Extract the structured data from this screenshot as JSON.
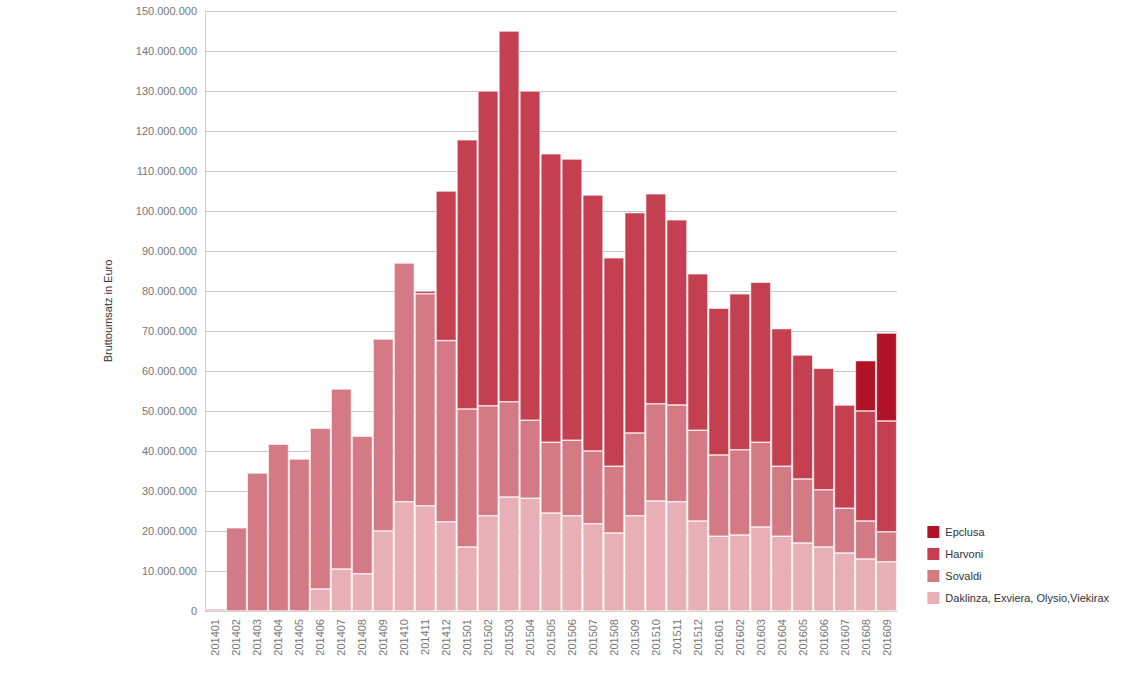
{
  "chart_data": {
    "type": "bar",
    "stacked": true,
    "grid": true,
    "legend": "bottom-right",
    "y_label": "Bruttoumsatz in Euro",
    "categories": [
      "201401",
      "201402",
      "201403",
      "201404",
      "201405",
      "201406",
      "201407",
      "201408",
      "201409",
      "201410",
      "201411",
      "201412",
      "201501",
      "201502",
      "201503",
      "201504",
      "201505",
      "201506",
      "201507",
      "201508",
      "201509",
      "201510",
      "201511",
      "201512",
      "201601",
      "201602",
      "201603",
      "201604",
      "201605",
      "201606",
      "201607",
      "201608",
      "201609"
    ],
    "ylim": [
      0,
      150000000
    ],
    "yticks": [
      0,
      {
        "value": 10000000,
        "label": "10.000.000"
      },
      {
        "value": 20000000,
        "label": "20.000.000"
      },
      {
        "value": 30000000,
        "label": "30.000.000"
      },
      {
        "value": 40000000,
        "label": "40.000.000"
      },
      {
        "value": 50000000,
        "label": "50.000.000"
      },
      {
        "value": 60000000,
        "label": "60.000.000"
      },
      {
        "value": 70000000,
        "label": "70.000.000"
      },
      {
        "value": 80000000,
        "label": "80.000.000"
      },
      {
        "value": 90000000,
        "label": "90.000.000"
      },
      {
        "value": 100000000,
        "label": "100.000.000"
      },
      {
        "value": 110000000,
        "label": "110.000.000"
      },
      {
        "value": 120000000,
        "label": "120.000.000"
      },
      {
        "value": 130000000,
        "label": "130.000.000"
      },
      {
        "value": 140000000,
        "label": "140.000.000"
      },
      {
        "value": 150000000,
        "label": "150.000.000"
      }
    ],
    "series": [
      {
        "name": "Epclusa",
        "color": "#b01226",
        "values": [
          null,
          null,
          null,
          null,
          null,
          null,
          null,
          null,
          null,
          null,
          null,
          null,
          null,
          null,
          null,
          null,
          null,
          null,
          null,
          null,
          null,
          null,
          null,
          null,
          null,
          null,
          null,
          null,
          null,
          null,
          200000,
          12600000,
          22000000
        ]
      },
      {
        "name": "Harvoni",
        "color": "#c44050",
        "values": [
          null,
          null,
          null,
          null,
          null,
          null,
          null,
          null,
          null,
          null,
          700000,
          37400000,
          67300000,
          78700000,
          92700000,
          82300000,
          72100000,
          70300000,
          64000000,
          52100000,
          55100000,
          52500000,
          46300000,
          39100000,
          36700000,
          39000000,
          40000000,
          34400000,
          31000000,
          30400000,
          25800000,
          27500000,
          27700000
        ]
      },
      {
        "name": "Sovaldi",
        "color": "#d47a85",
        "values": [
          500000,
          20800000,
          34500000,
          41700000,
          38000000,
          40200000,
          45000000,
          34400000,
          48000000,
          59700000,
          53000000,
          45300000,
          34500000,
          27500000,
          23800000,
          19500000,
          17700000,
          18900000,
          18200000,
          16700000,
          20700000,
          24300000,
          24200000,
          22700000,
          20300000,
          21300000,
          21200000,
          17500000,
          16000000,
          14300000,
          11200000,
          9500000,
          7500000
        ]
      },
      {
        "name": "Daklinza, Exviera, Olysio,Viekirax",
        "color": "#e8b0b6",
        "values": [
          null,
          null,
          null,
          null,
          null,
          5500000,
          10500000,
          9300000,
          20000000,
          27300000,
          26300000,
          22300000,
          16000000,
          23800000,
          28500000,
          28200000,
          24500000,
          23800000,
          21800000,
          19500000,
          23800000,
          27500000,
          27300000,
          22500000,
          18700000,
          19000000,
          21000000,
          18700000,
          17000000,
          16000000,
          14500000,
          13000000,
          12300000
        ]
      }
    ]
  }
}
